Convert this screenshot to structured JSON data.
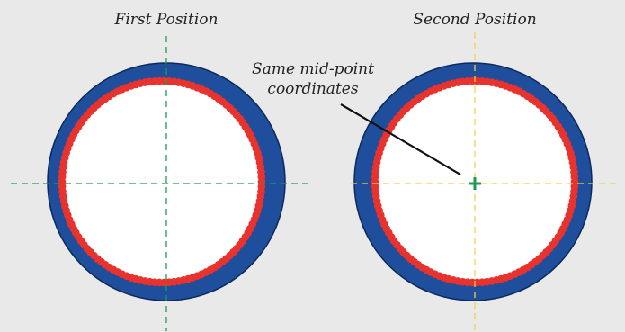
{
  "diagram": {
    "panels": [
      {
        "title": "First Position",
        "crosshair_color": "#1f9a55"
      },
      {
        "title": "Second Position",
        "crosshair_color": "#f4d14a"
      }
    ],
    "annotation": {
      "line1": "Same mid-point",
      "line2": "coordinates"
    },
    "colors": {
      "background": "#e9e9e9",
      "ring": "#1f4e9c",
      "ring_outline": "#0d2a5c",
      "bore": "#ffffff",
      "dots": "#e8322e",
      "midpoint_marker": "#1f9a55"
    }
  }
}
